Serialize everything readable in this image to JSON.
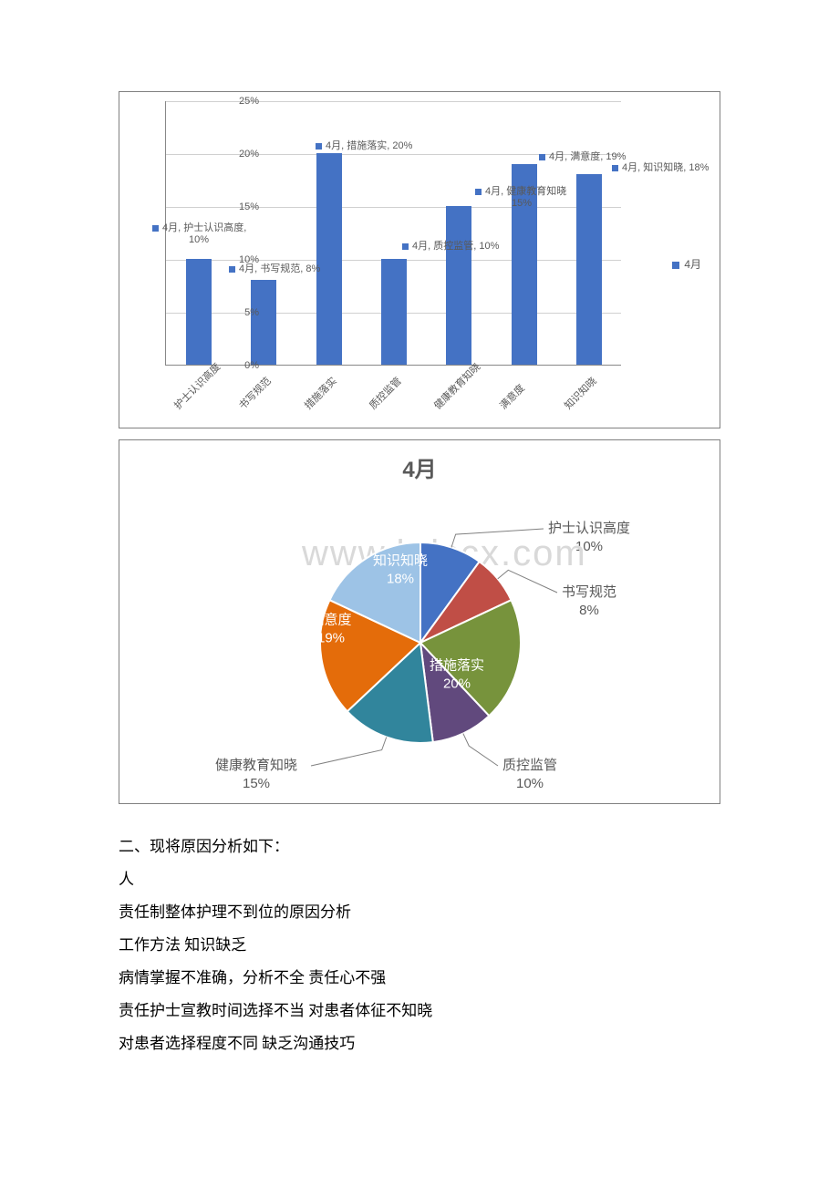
{
  "bar_chart": {
    "type": "bar",
    "series_name": "4月",
    "categories": [
      "护士认识高度",
      "书写规范",
      "措施落实",
      "质控监管",
      "健康教育知晓",
      "满意度",
      "知识知晓"
    ],
    "values": [
      10,
      8,
      20,
      10,
      15,
      19,
      18
    ],
    "data_labels": [
      "4月, 护士认识高度, 10%",
      "4月, 书写规范, 8%",
      "4月, 措施落实, 20%",
      "4月, 质控监管, 10%",
      "4月, 健康教育知晓, 15%",
      "4月, 满意度, 19%",
      "4月, 知识知晓, 18%"
    ],
    "bar_color": "#4472c4",
    "ylim": [
      0,
      25
    ],
    "ytick_step": 5,
    "yticks": [
      "0%",
      "5%",
      "10%",
      "15%",
      "20%",
      "25%"
    ],
    "background_color": "#ffffff",
    "grid_color": "#d0d0d0",
    "axis_color": "#888888",
    "legend_label": "4月"
  },
  "pie_chart": {
    "type": "pie",
    "title": "4月",
    "slices": [
      {
        "label": "护士认识高度",
        "value": 10,
        "color": "#4472c4",
        "display": "护士认识高度\n10%"
      },
      {
        "label": "书写规范",
        "value": 8,
        "color": "#c04e46",
        "display": "书写规范\n8%"
      },
      {
        "label": "措施落实",
        "value": 20,
        "color": "#77933c",
        "display": "措施落实\n20%"
      },
      {
        "label": "质控监管",
        "value": 10,
        "color": "#61497d",
        "display": "质控监管\n10%"
      },
      {
        "label": "健康教育知晓",
        "value": 15,
        "color": "#31859c",
        "display": "健康教育知晓\n15%"
      },
      {
        "label": "满意度",
        "value": 19,
        "color": "#e46c0a",
        "display": "满意度\n19%"
      },
      {
        "label": "知识知晓",
        "value": 18,
        "color": "#9dc3e6",
        "display": "知识知晓\n18%"
      }
    ],
    "title_fontsize": 24,
    "label_fontsize": 15,
    "border_color": "#ffffff",
    "watermark": "www.bdccx.com"
  },
  "text": {
    "line1": "二、现将原因分析如下：",
    "line2": "人",
    "line3": "责任制整体护理不到位的原因分析",
    "line4": " 工作方法  知识缺乏",
    "line5": "病情掌握不准确，分析不全  责任心不强",
    "line6": "责任护士宣教时间选择不当 对患者体征不知晓",
    "line7": " 对患者选择程度不同 缺乏沟通技巧"
  }
}
